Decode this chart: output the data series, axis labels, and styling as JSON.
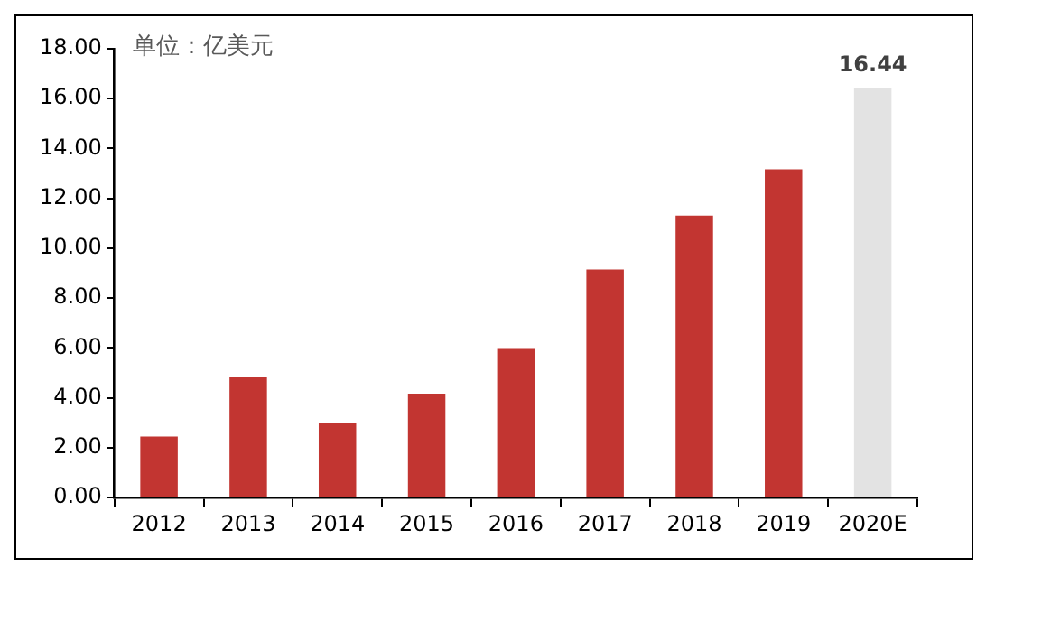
{
  "chart_data": {
    "type": "bar",
    "ylabel": "单位：亿美元",
    "categories": [
      "2012",
      "2013",
      "2014",
      "2015",
      "2016",
      "2017",
      "2018",
      "2019",
      "2020E"
    ],
    "values": [
      2.45,
      4.83,
      2.98,
      4.17,
      6.0,
      9.15,
      11.31,
      13.17,
      16.44
    ],
    "colors": [
      "#c23531",
      "#c23531",
      "#c23531",
      "#c23531",
      "#c23531",
      "#c23531",
      "#c23531",
      "#c23531",
      "#e3e3e3"
    ],
    "value_labels": [
      null,
      null,
      null,
      null,
      null,
      null,
      null,
      null,
      "16.44"
    ],
    "ylim": [
      0,
      18
    ],
    "yticks": [
      {
        "value": 0,
        "label": "0.00"
      },
      {
        "value": 2,
        "label": "2.00"
      },
      {
        "value": 4,
        "label": "4.00"
      },
      {
        "value": 6,
        "label": "6.00"
      },
      {
        "value": 8,
        "label": "8.00"
      },
      {
        "value": 10,
        "label": "10.00"
      },
      {
        "value": 12,
        "label": "12.00"
      },
      {
        "value": 14,
        "label": "14.00"
      },
      {
        "value": 16,
        "label": "16.00"
      },
      {
        "value": 18,
        "label": "18.00"
      }
    ],
    "grid": false,
    "legend": false
  }
}
